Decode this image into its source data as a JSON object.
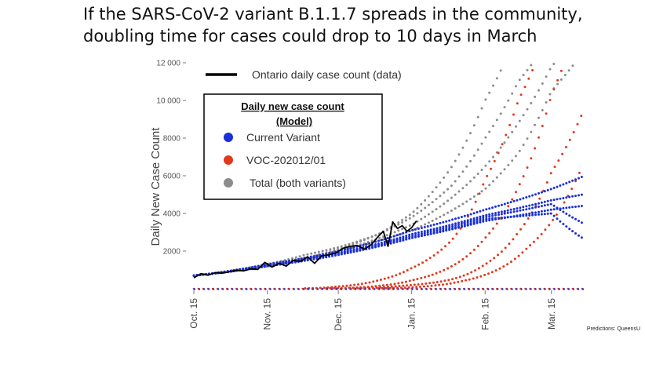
{
  "slide": {
    "title_line1": "If the SARS-CoV-2 variant B.1.1.7 spreads in the community,",
    "title_line2": "doubling time for cases could drop to 10 days in March",
    "credit": "Predictions: QueensU"
  },
  "chart_data": {
    "type": "scatter",
    "title": "",
    "xlabel": "",
    "ylabel": "Daily New Case Count",
    "ylim": [
      0,
      12000
    ],
    "y_ticks": [
      2000,
      4000,
      6000,
      8000,
      10000,
      12000
    ],
    "y_tick_labels": [
      "2000",
      "4000",
      "6000",
      "8000",
      "10 000",
      "12 000"
    ],
    "x_range": [
      "2020-10-15",
      "2021-03-28"
    ],
    "x_ticks": [
      "2020-10-15",
      "2020-11-15",
      "2020-12-15",
      "2021-01-15",
      "2021-02-15",
      "2021-03-15"
    ],
    "x_tick_labels": [
      "Oct. 15",
      "Nov. 15",
      "Dec. 15",
      "Jan. 15",
      "Feb. 15",
      "Mar. 15"
    ],
    "grid": false,
    "legend_placement": "top-left",
    "data_legend": {
      "label": "Ontario daily case count (data)",
      "color": "#000000"
    },
    "model_legend": {
      "title_line1": "Daily new case count",
      "title_line2": "(Model)",
      "entries": [
        {
          "label": "Current Variant",
          "color": "#1a2fd6"
        },
        {
          "label": "VOC-202012/01",
          "color": "#e03a1e"
        },
        {
          "label": "Total (both variants)",
          "color": "#8c8c8c"
        }
      ]
    },
    "ontario_data": {
      "name": "Ontario daily case count (data)",
      "x": [
        "2020-10-15",
        "2020-10-18",
        "2020-10-21",
        "2020-10-24",
        "2020-10-27",
        "2020-10-30",
        "2020-11-02",
        "2020-11-05",
        "2020-11-08",
        "2020-11-11",
        "2020-11-14",
        "2020-11-17",
        "2020-11-20",
        "2020-11-23",
        "2020-11-26",
        "2020-11-29",
        "2020-12-02",
        "2020-12-05",
        "2020-12-08",
        "2020-12-11",
        "2020-12-14",
        "2020-12-17",
        "2020-12-20",
        "2020-12-23",
        "2020-12-26",
        "2020-12-29",
        "2021-01-01",
        "2021-01-03",
        "2021-01-05",
        "2021-01-07",
        "2021-01-09",
        "2021-01-11",
        "2021-01-13",
        "2021-01-15",
        "2021-01-17"
      ],
      "values": [
        580,
        800,
        720,
        850,
        830,
        900,
        980,
        950,
        1050,
        1030,
        1400,
        1150,
        1350,
        1200,
        1500,
        1450,
        1700,
        1350,
        1750,
        1800,
        1900,
        2150,
        2250,
        2300,
        2100,
        2350,
        2800,
        3050,
        2250,
        3550,
        3200,
        3350,
        3050,
        3250,
        3600
      ]
    },
    "model_runs": {
      "current_variant": [
        {
          "x": [
            "2020-10-15",
            "2020-11-15",
            "2020-12-15",
            "2021-01-15",
            "2021-02-15",
            "2021-03-15",
            "2021-03-28"
          ],
          "values": [
            700,
            1250,
            1900,
            2900,
            3900,
            4700,
            5000
          ]
        },
        {
          "x": [
            "2020-10-15",
            "2020-11-15",
            "2020-12-15",
            "2021-01-15",
            "2021-02-15",
            "2021-03-15",
            "2021-03-28"
          ],
          "values": [
            700,
            1300,
            2000,
            3100,
            4200,
            5300,
            5950
          ]
        },
        {
          "x": [
            "2020-10-15",
            "2020-11-15",
            "2020-12-15",
            "2021-01-15",
            "2021-02-15",
            "2021-03-15",
            "2021-03-28"
          ],
          "values": [
            700,
            1200,
            1800,
            2700,
            3600,
            4200,
            4400
          ]
        },
        {
          "x": [
            "2020-10-15",
            "2020-11-15",
            "2020-12-15",
            "2021-01-15",
            "2021-02-15",
            "2021-03-15",
            "2021-03-28"
          ],
          "values": [
            700,
            1250,
            1900,
            2800,
            3800,
            4500,
            3500
          ]
        },
        {
          "x": [
            "2020-10-15",
            "2020-11-15",
            "2020-12-15",
            "2021-01-15",
            "2021-02-15",
            "2021-03-15",
            "2021-03-28"
          ],
          "values": [
            700,
            1200,
            1850,
            2700,
            3700,
            4000,
            2700
          ]
        }
      ],
      "voc_202012_01": [
        {
          "x": [
            "2020-12-01",
            "2020-12-15",
            "2021-01-01",
            "2021-01-15",
            "2021-02-01",
            "2021-02-15",
            "2021-03-01",
            "2021-03-10"
          ],
          "values": [
            20,
            120,
            450,
            1100,
            2600,
            5800,
            10000,
            12500
          ]
        },
        {
          "x": [
            "2020-12-10",
            "2021-01-01",
            "2021-01-15",
            "2021-02-01",
            "2021-02-15",
            "2021-03-01",
            "2021-03-15",
            "2021-03-22"
          ],
          "values": [
            20,
            150,
            450,
            1200,
            2700,
            5400,
            10300,
            12500
          ]
        },
        {
          "x": [
            "2020-12-20",
            "2021-01-10",
            "2021-02-01",
            "2021-02-15",
            "2021-03-01",
            "2021-03-15",
            "2021-03-28"
          ],
          "values": [
            20,
            150,
            500,
            1300,
            3000,
            6200,
            9300
          ]
        },
        {
          "x": [
            "2021-01-01",
            "2021-01-20",
            "2021-02-05",
            "2021-02-20",
            "2021-03-05",
            "2021-03-20",
            "2021-03-28"
          ],
          "values": [
            20,
            120,
            400,
            1000,
            2200,
            4500,
            6500
          ]
        }
      ],
      "total_both_variants": [
        {
          "x": [
            "2020-10-15",
            "2020-12-01",
            "2020-12-15",
            "2021-01-01",
            "2021-01-15",
            "2021-02-01",
            "2021-02-15",
            "2021-02-25"
          ],
          "values": [
            700,
            1800,
            2200,
            2900,
            4000,
            6500,
            10000,
            12500
          ]
        },
        {
          "x": [
            "2020-10-15",
            "2020-12-15",
            "2021-01-15",
            "2021-02-01",
            "2021-02-15",
            "2021-03-01",
            "2021-03-10"
          ],
          "values": [
            700,
            2100,
            3800,
            5500,
            8000,
            11000,
            12500
          ]
        },
        {
          "x": [
            "2020-10-15",
            "2020-12-15",
            "2021-01-15",
            "2021-02-15",
            "2021-03-01",
            "2021-03-15",
            "2021-03-20"
          ],
          "values": [
            700,
            2000,
            3400,
            6500,
            8800,
            11800,
            12500
          ]
        },
        {
          "x": [
            "2020-10-15",
            "2020-12-15",
            "2021-01-15",
            "2021-02-15",
            "2021-03-01",
            "2021-03-15",
            "2021-03-28"
          ],
          "values": [
            700,
            2000,
            3100,
            5300,
            7200,
            10500,
            12500
          ]
        }
      ]
    }
  }
}
